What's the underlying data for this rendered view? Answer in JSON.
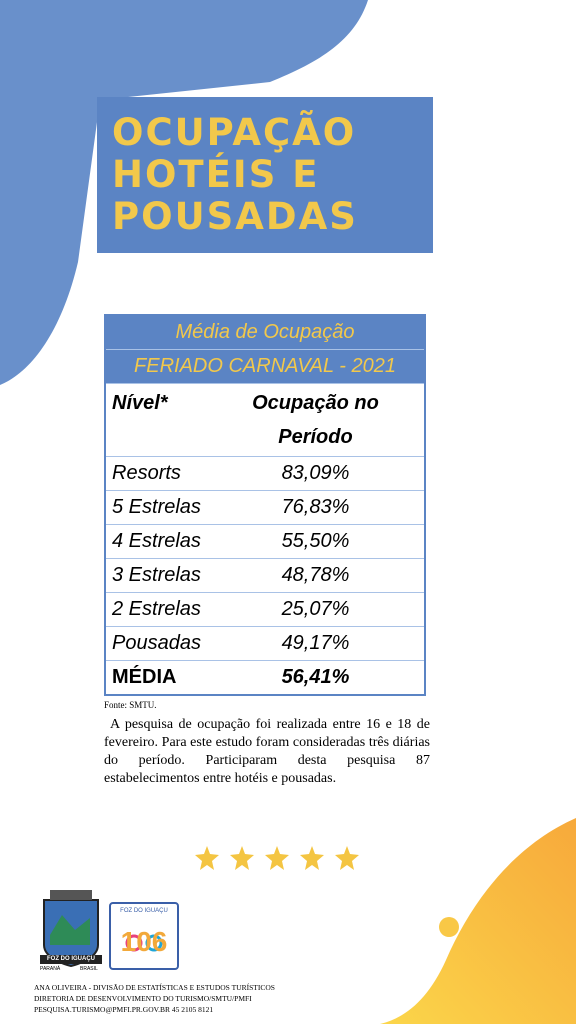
{
  "header": {
    "title_lines": [
      "OCUPAÇÃO",
      "HOTÉIS E",
      "POUSADAS"
    ]
  },
  "table": {
    "caption_lines": [
      "Média de Ocupação",
      "FERIADO CARNAVAL - 2021"
    ],
    "columns": [
      "Nível*",
      "Ocupação no Período"
    ],
    "rows": [
      [
        "Resorts",
        "83,09%"
      ],
      [
        "5 Estrelas",
        "76,83%"
      ],
      [
        "4 Estrelas",
        "55,50%"
      ],
      [
        "3 Estrelas",
        "48,78%"
      ],
      [
        "2 Estrelas",
        "25,07%"
      ],
      [
        "Pousadas",
        "49,17%"
      ],
      [
        "MÉDIA",
        "56,41%"
      ]
    ]
  },
  "source": "Fonte: SMTU.",
  "paragraph": "A pesquisa de ocupação foi realizada entre 16 e 18 de fevereiro. Para este estudo foram consideradas três diárias do período. Participaram desta pesquisa 87 estabelecimentos entre hotéis e pousadas.",
  "logos": {
    "city": "FOZ DO IGUAÇU",
    "state": "PARANÁ",
    "country": "BRASIL",
    "anniversary_city": "FOZ DO IGUAÇU",
    "anniversary": "106"
  },
  "footer": [
    "ANA OLIVEIRA - DIVISÃO DE ESTATÍSTICAS E ESTUDOS TURÍSTICOS",
    "DIRETORIA DE DESENVOLVIMENTO DO TURISMO/SMTU/PMFI",
    "PESQUISA.TURISMO@PMFI.PR.GOV.BR  45 2105 8121"
  ]
}
